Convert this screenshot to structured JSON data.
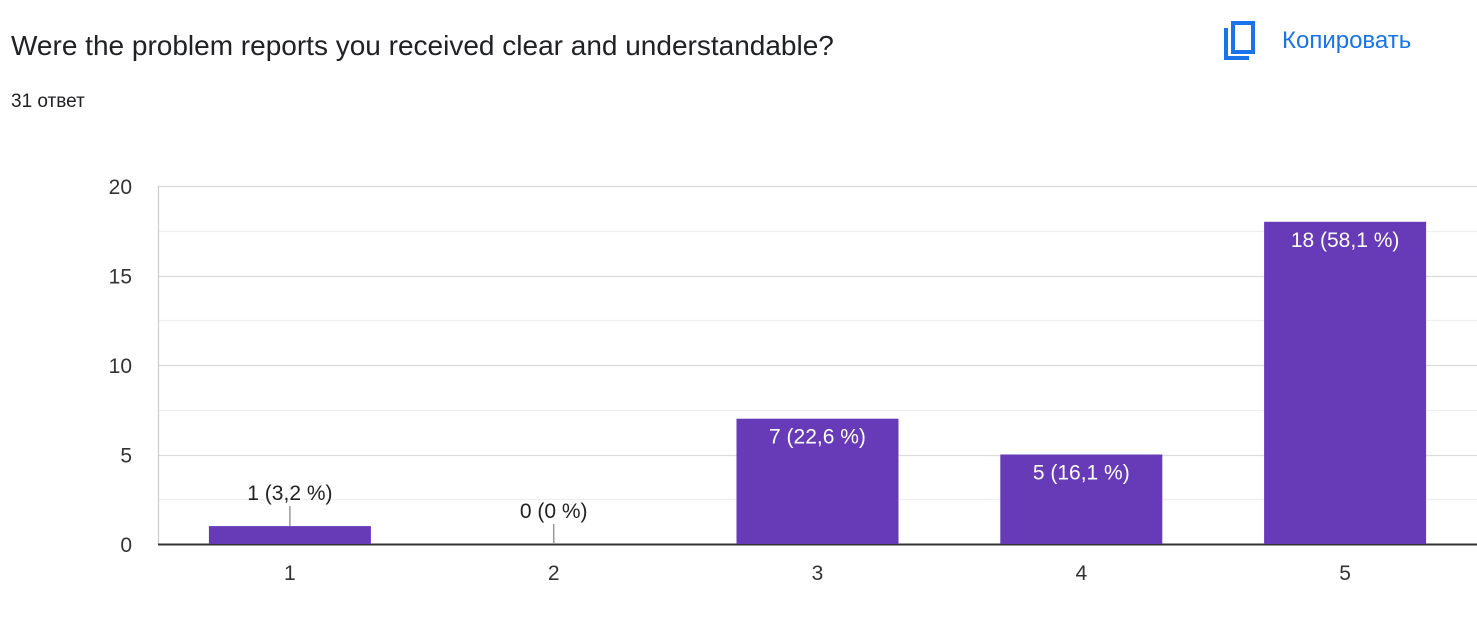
{
  "question": {
    "title": "Were the problem reports you received clear and understandable?",
    "response_count": "31 ответ"
  },
  "toolbar": {
    "copy_label": "Копировать",
    "copy_icon": "copy-icon"
  },
  "colors": {
    "bar": "#673ab7",
    "copy_accent": "#1a73e8",
    "grid": "#e8e8e8",
    "axis": "#333333"
  },
  "chart_data": {
    "type": "bar",
    "categories": [
      "1",
      "2",
      "3",
      "4",
      "5"
    ],
    "values": [
      1,
      0,
      7,
      5,
      18
    ],
    "data_labels": [
      "1 (3,2 %)",
      "0 (0 %)",
      "7 (22,6 %)",
      "5 (16,1 %)",
      "18 (58,1 %)"
    ],
    "y_ticks": [
      "0",
      "5",
      "10",
      "15",
      "20"
    ],
    "ylim": [
      0,
      20
    ],
    "grid": true,
    "minor_grid_step": 2.5,
    "title": "",
    "xlabel": "",
    "ylabel": ""
  }
}
